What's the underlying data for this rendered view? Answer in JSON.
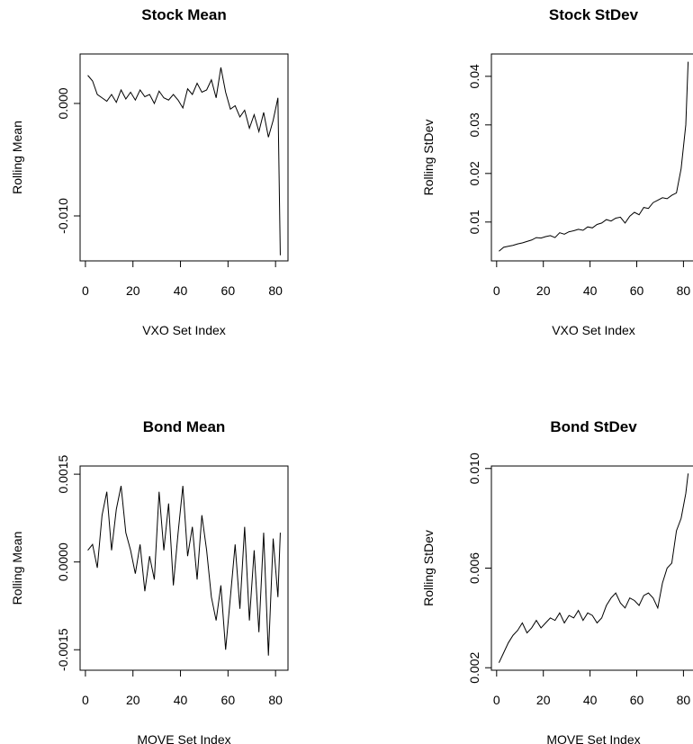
{
  "chart_data": [
    {
      "type": "line",
      "title": "Stock Mean",
      "x_label": "VXO Set Index",
      "y_label": "Rolling Mean",
      "x": [
        1,
        3,
        5,
        7,
        9,
        11,
        13,
        15,
        17,
        19,
        21,
        23,
        25,
        27,
        29,
        31,
        33,
        35,
        37,
        39,
        41,
        43,
        45,
        47,
        49,
        51,
        53,
        55,
        57,
        59,
        61,
        63,
        65,
        67,
        69,
        71,
        73,
        75,
        77,
        79,
        81,
        82
      ],
      "values": [
        0.0025,
        0.002,
        0.0008,
        0.0005,
        0.0002,
        0.0008,
        0.0001,
        0.0012,
        0.0004,
        0.001,
        0.0003,
        0.0012,
        0.0006,
        0.0008,
        0,
        0.0011,
        0.0005,
        0.0003,
        0.0008,
        0.0003,
        -0.0004,
        0.0013,
        0.0008,
        0.0018,
        0.001,
        0.0012,
        0.0021,
        0.0005,
        0.0032,
        0.001,
        -0.0005,
        -0.0002,
        -0.0012,
        -0.0006,
        -0.0022,
        -0.001,
        -0.0025,
        -0.0008,
        -0.003,
        -0.0015,
        0.0005,
        -0.0135
      ],
      "color": "#000000",
      "xlim": [
        -2.24,
        85.24
      ],
      "xticks": [
        0,
        20,
        40,
        60,
        80
      ],
      "ylim": [
        -0.014,
        0.0044
      ],
      "yticks": [
        {
          "value": -0.01,
          "label": "-0.010"
        },
        {
          "value": 0,
          "label": "0.000"
        }
      ]
    },
    {
      "type": "line",
      "title": "Stock StDev",
      "x_label": "VXO Set Index",
      "y_label": "Rolling StDev",
      "x": [
        1,
        3,
        5,
        7,
        9,
        11,
        13,
        15,
        17,
        19,
        21,
        23,
        25,
        27,
        29,
        31,
        33,
        35,
        37,
        39,
        41,
        43,
        45,
        47,
        49,
        51,
        53,
        55,
        57,
        59,
        61,
        63,
        65,
        67,
        69,
        71,
        73,
        75,
        77,
        79,
        81,
        82
      ],
      "values": [
        0.004,
        0.0048,
        0.005,
        0.0052,
        0.0055,
        0.0057,
        0.006,
        0.0063,
        0.0068,
        0.0067,
        0.007,
        0.0072,
        0.0068,
        0.0078,
        0.0075,
        0.008,
        0.0082,
        0.0085,
        0.0083,
        0.009,
        0.0088,
        0.0095,
        0.0098,
        0.0105,
        0.0102,
        0.0108,
        0.011,
        0.0098,
        0.0112,
        0.012,
        0.0115,
        0.013,
        0.0128,
        0.014,
        0.0145,
        0.015,
        0.0148,
        0.0155,
        0.016,
        0.021,
        0.03,
        0.043
      ],
      "color": "#000000",
      "xlim": [
        -2.24,
        85.24
      ],
      "xticks": [
        0,
        20,
        40,
        60,
        80
      ],
      "ylim": [
        0.002,
        0.0446
      ],
      "yticks": [
        0.01,
        0.02,
        0.03,
        0.04
      ]
    },
    {
      "type": "line",
      "title": "Bond Mean",
      "x_label": "MOVE Set Index",
      "y_label": "Rolling Mean",
      "x": [
        1,
        3,
        5,
        7,
        9,
        11,
        13,
        15,
        17,
        19,
        21,
        23,
        25,
        27,
        29,
        31,
        33,
        35,
        37,
        39,
        41,
        43,
        45,
        47,
        49,
        51,
        53,
        55,
        57,
        59,
        61,
        63,
        65,
        67,
        69,
        71,
        73,
        75,
        77,
        79,
        81,
        82
      ],
      "values": [
        0.0002,
        0.0003,
        -0.0001,
        0.0008,
        0.0012,
        0.0002,
        0.0009,
        0.0013,
        0.0005,
        0.0002,
        -0.0002,
        0.0003,
        -0.0005,
        0.0001,
        -0.0003,
        0.0012,
        0.0002,
        0.001,
        -0.0004,
        0.0005,
        0.0013,
        0.0001,
        0.0006,
        -0.0003,
        0.0008,
        0.0002,
        -0.0006,
        -0.001,
        -0.0004,
        -0.0015,
        -0.0006,
        0.0003,
        -0.0008,
        0.0006,
        -0.001,
        0.0002,
        -0.0012,
        0.0005,
        -0.0016,
        0.0004,
        -0.0006,
        0.0005
      ],
      "color": "#000000",
      "xlim": [
        -2.24,
        85.24
      ],
      "xticks": [
        0,
        20,
        40,
        60,
        80
      ],
      "ylim": [
        -0.00185,
        0.00164
      ],
      "yticks": [
        {
          "value": -0.0015,
          "label": "-0.0015"
        },
        {
          "value": 0,
          "label": "0.0000"
        },
        {
          "value": 0.0015,
          "label": "0.0015"
        }
      ]
    },
    {
      "type": "line",
      "title": "Bond StDev",
      "x_label": "MOVE Set Index",
      "y_label": "Rolling StDev",
      "x": [
        1,
        3,
        5,
        7,
        9,
        11,
        13,
        15,
        17,
        19,
        21,
        23,
        25,
        27,
        29,
        31,
        33,
        35,
        37,
        39,
        41,
        43,
        45,
        47,
        49,
        51,
        53,
        55,
        57,
        59,
        61,
        63,
        65,
        67,
        69,
        71,
        73,
        75,
        77,
        79,
        81,
        82
      ],
      "values": [
        0.0022,
        0.0026,
        0.003,
        0.0033,
        0.0035,
        0.0038,
        0.0034,
        0.0036,
        0.0039,
        0.0036,
        0.0038,
        0.004,
        0.0039,
        0.0042,
        0.0038,
        0.0041,
        0.004,
        0.0043,
        0.0039,
        0.0042,
        0.0041,
        0.0038,
        0.004,
        0.0045,
        0.0048,
        0.005,
        0.0046,
        0.0044,
        0.0048,
        0.0047,
        0.0045,
        0.0049,
        0.005,
        0.0048,
        0.0044,
        0.0054,
        0.006,
        0.0062,
        0.0075,
        0.008,
        0.009,
        0.0098
      ],
      "color": "#000000",
      "xlim": [
        -2.24,
        85.24
      ],
      "xticks": [
        0,
        20,
        40,
        60,
        80
      ],
      "ylim": [
        0.0019,
        0.0101
      ],
      "yticks": [
        {
          "value": 0.002,
          "label": "0.002"
        },
        {
          "value": 0.006,
          "label": "0.006"
        },
        {
          "value": 0.01,
          "label": "0.010"
        }
      ]
    }
  ]
}
